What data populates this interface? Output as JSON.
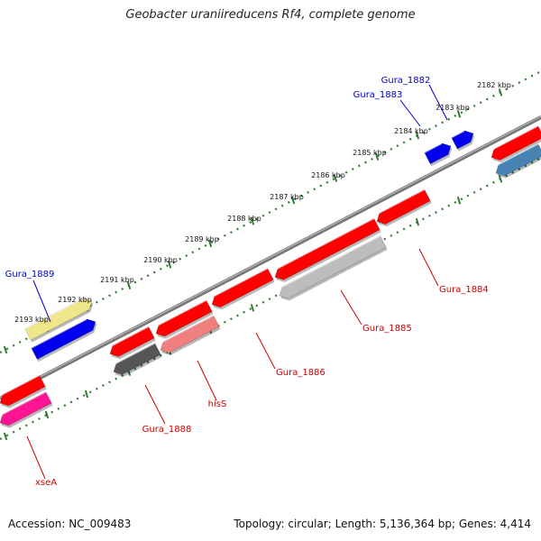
{
  "title": "Geobacter uraniireducens Rf4, complete genome",
  "footer": {
    "accession": "Accession: NC_009483",
    "summary": "Topology: circular; Length: 5,136,364 bp; Genes: 4,414"
  },
  "ticks": [
    "2182 kbp",
    "2183 kbp",
    "2184 kbp",
    "2185 kbp",
    "2186 kbp",
    "2187 kbp",
    "2188 kbp",
    "2189 kbp",
    "2190 kbp",
    "2191 kbp",
    "2192 kbp",
    "2193 kbp"
  ],
  "forward_labels": [
    "Gura_1882",
    "Gura_1883",
    "Gura_1889"
  ],
  "reverse_labels": [
    "Gura_1884",
    "Gura_1885",
    "Gura_1886",
    "hisS",
    "Gura_1888",
    "xseA"
  ],
  "colors": {
    "red": "#ff0000",
    "blue": "#0000ee",
    "steel": "#4682b4",
    "khaki": "#f0e68c",
    "gray": "#bdbdbd",
    "darkgray": "#555555",
    "salmon": "#f08080",
    "pink": "#ff1493",
    "backbone": "#777777",
    "tick": "#2e7d2e",
    "fwd_label": "#0000cc",
    "rev_label": "#cc0000"
  }
}
